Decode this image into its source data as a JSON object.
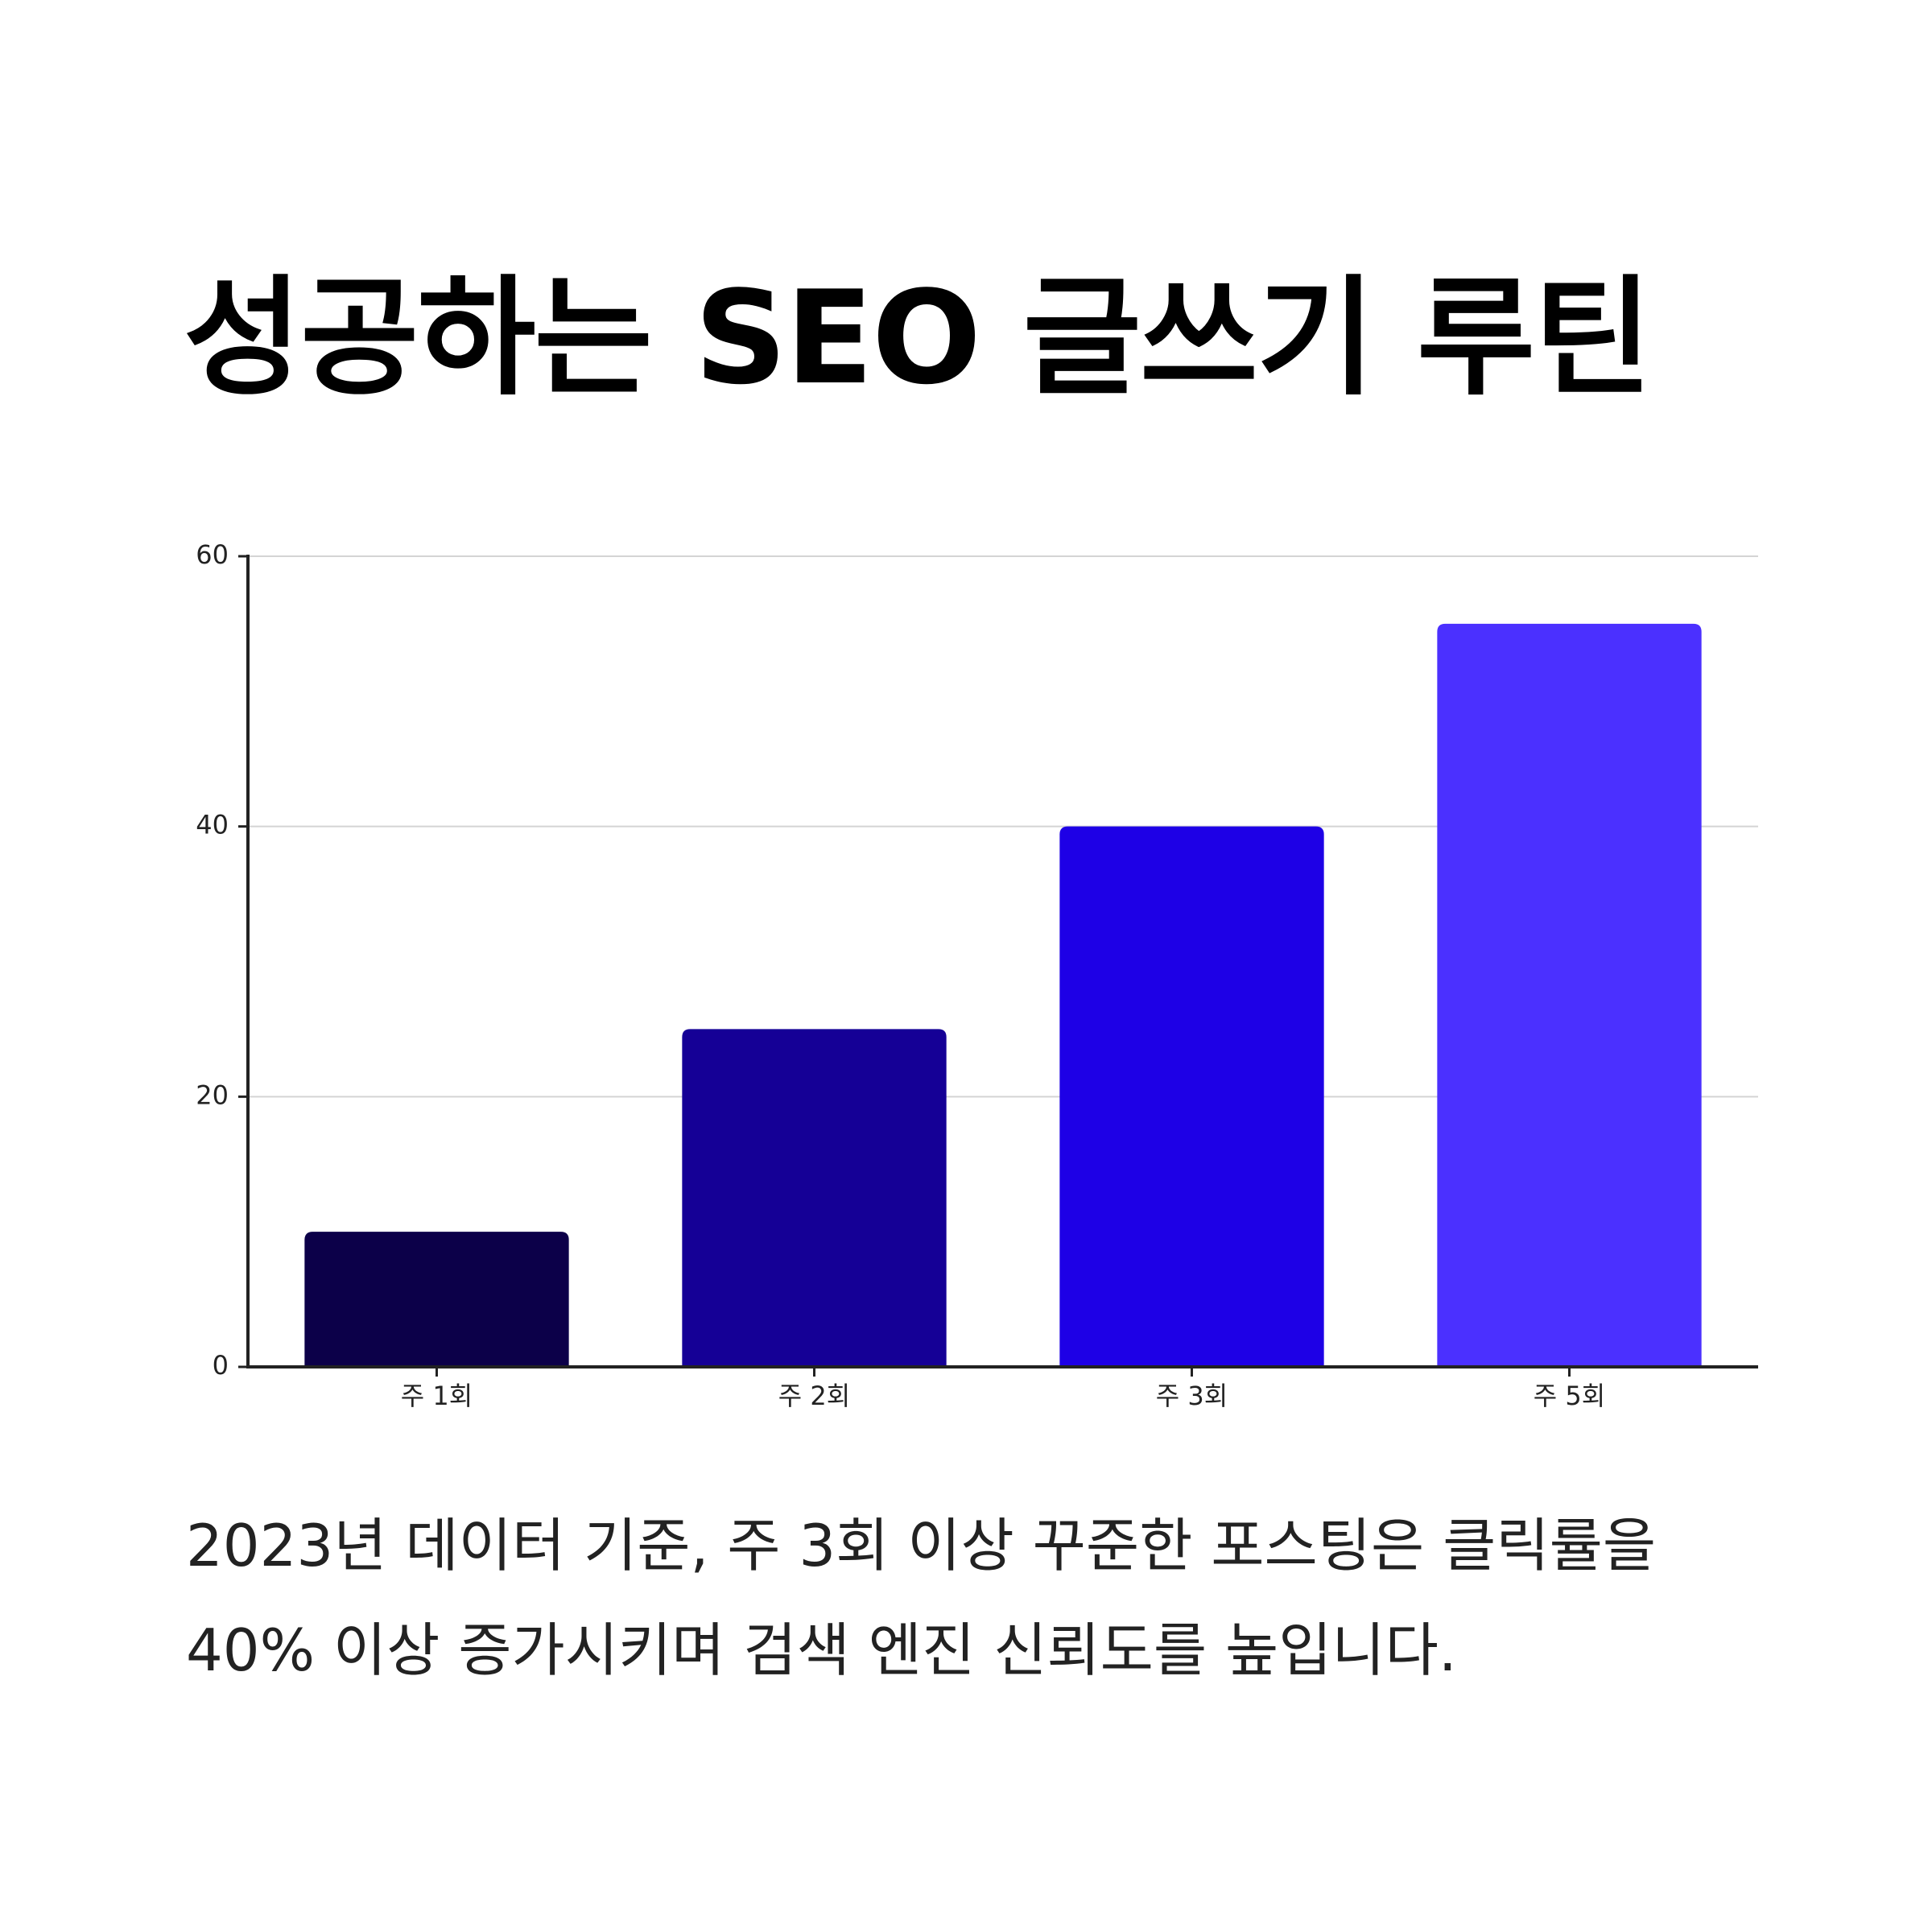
{
  "chart_data": {
    "type": "bar",
    "title": "성공하는 SEO 글쓰기 루틴",
    "categories": [
      "주 1회",
      "주 2회",
      "주 3회",
      "주 5회"
    ],
    "values": [
      10,
      25,
      40,
      55
    ],
    "colors": [
      "#0c0049",
      "#150096",
      "#1e00e6",
      "#4b30ff"
    ],
    "ylim": [
      0,
      60
    ],
    "yticks": [
      0,
      20,
      40,
      60
    ],
    "grid": true,
    "caption": "2023년 데이터 기준, 주 3회 이상 꾸준한 포스팅은 클릭률을 40% 이상 증가시키며 검색 엔진 신뢰도를 높입니다."
  }
}
